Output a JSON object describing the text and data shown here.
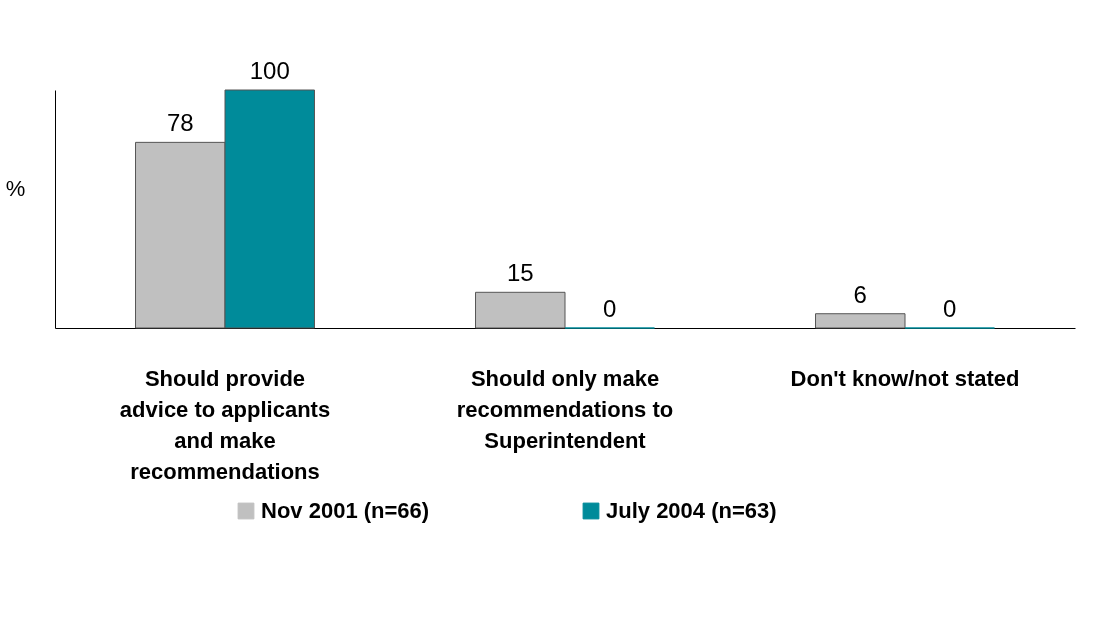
{
  "chart_data": {
    "type": "bar",
    "ylabel": "%",
    "categories": [
      "Should provide advice to applicants and make recommendations",
      "Should only make recommendations to Superintendent",
      "Don't know/not stated"
    ],
    "series": [
      {
        "name": "Nov 2001 (n=66)",
        "color": "#c0c0c0",
        "values": [
          78,
          15,
          6
        ]
      },
      {
        "name": "July 2004 (n=63)",
        "color": "#008b9a",
        "values": [
          100,
          0,
          0
        ]
      }
    ],
    "ylim": [
      0,
      100
    ],
    "data_labels": true,
    "legend": "bottom",
    "tick_labels": "x",
    "grid": false
  }
}
